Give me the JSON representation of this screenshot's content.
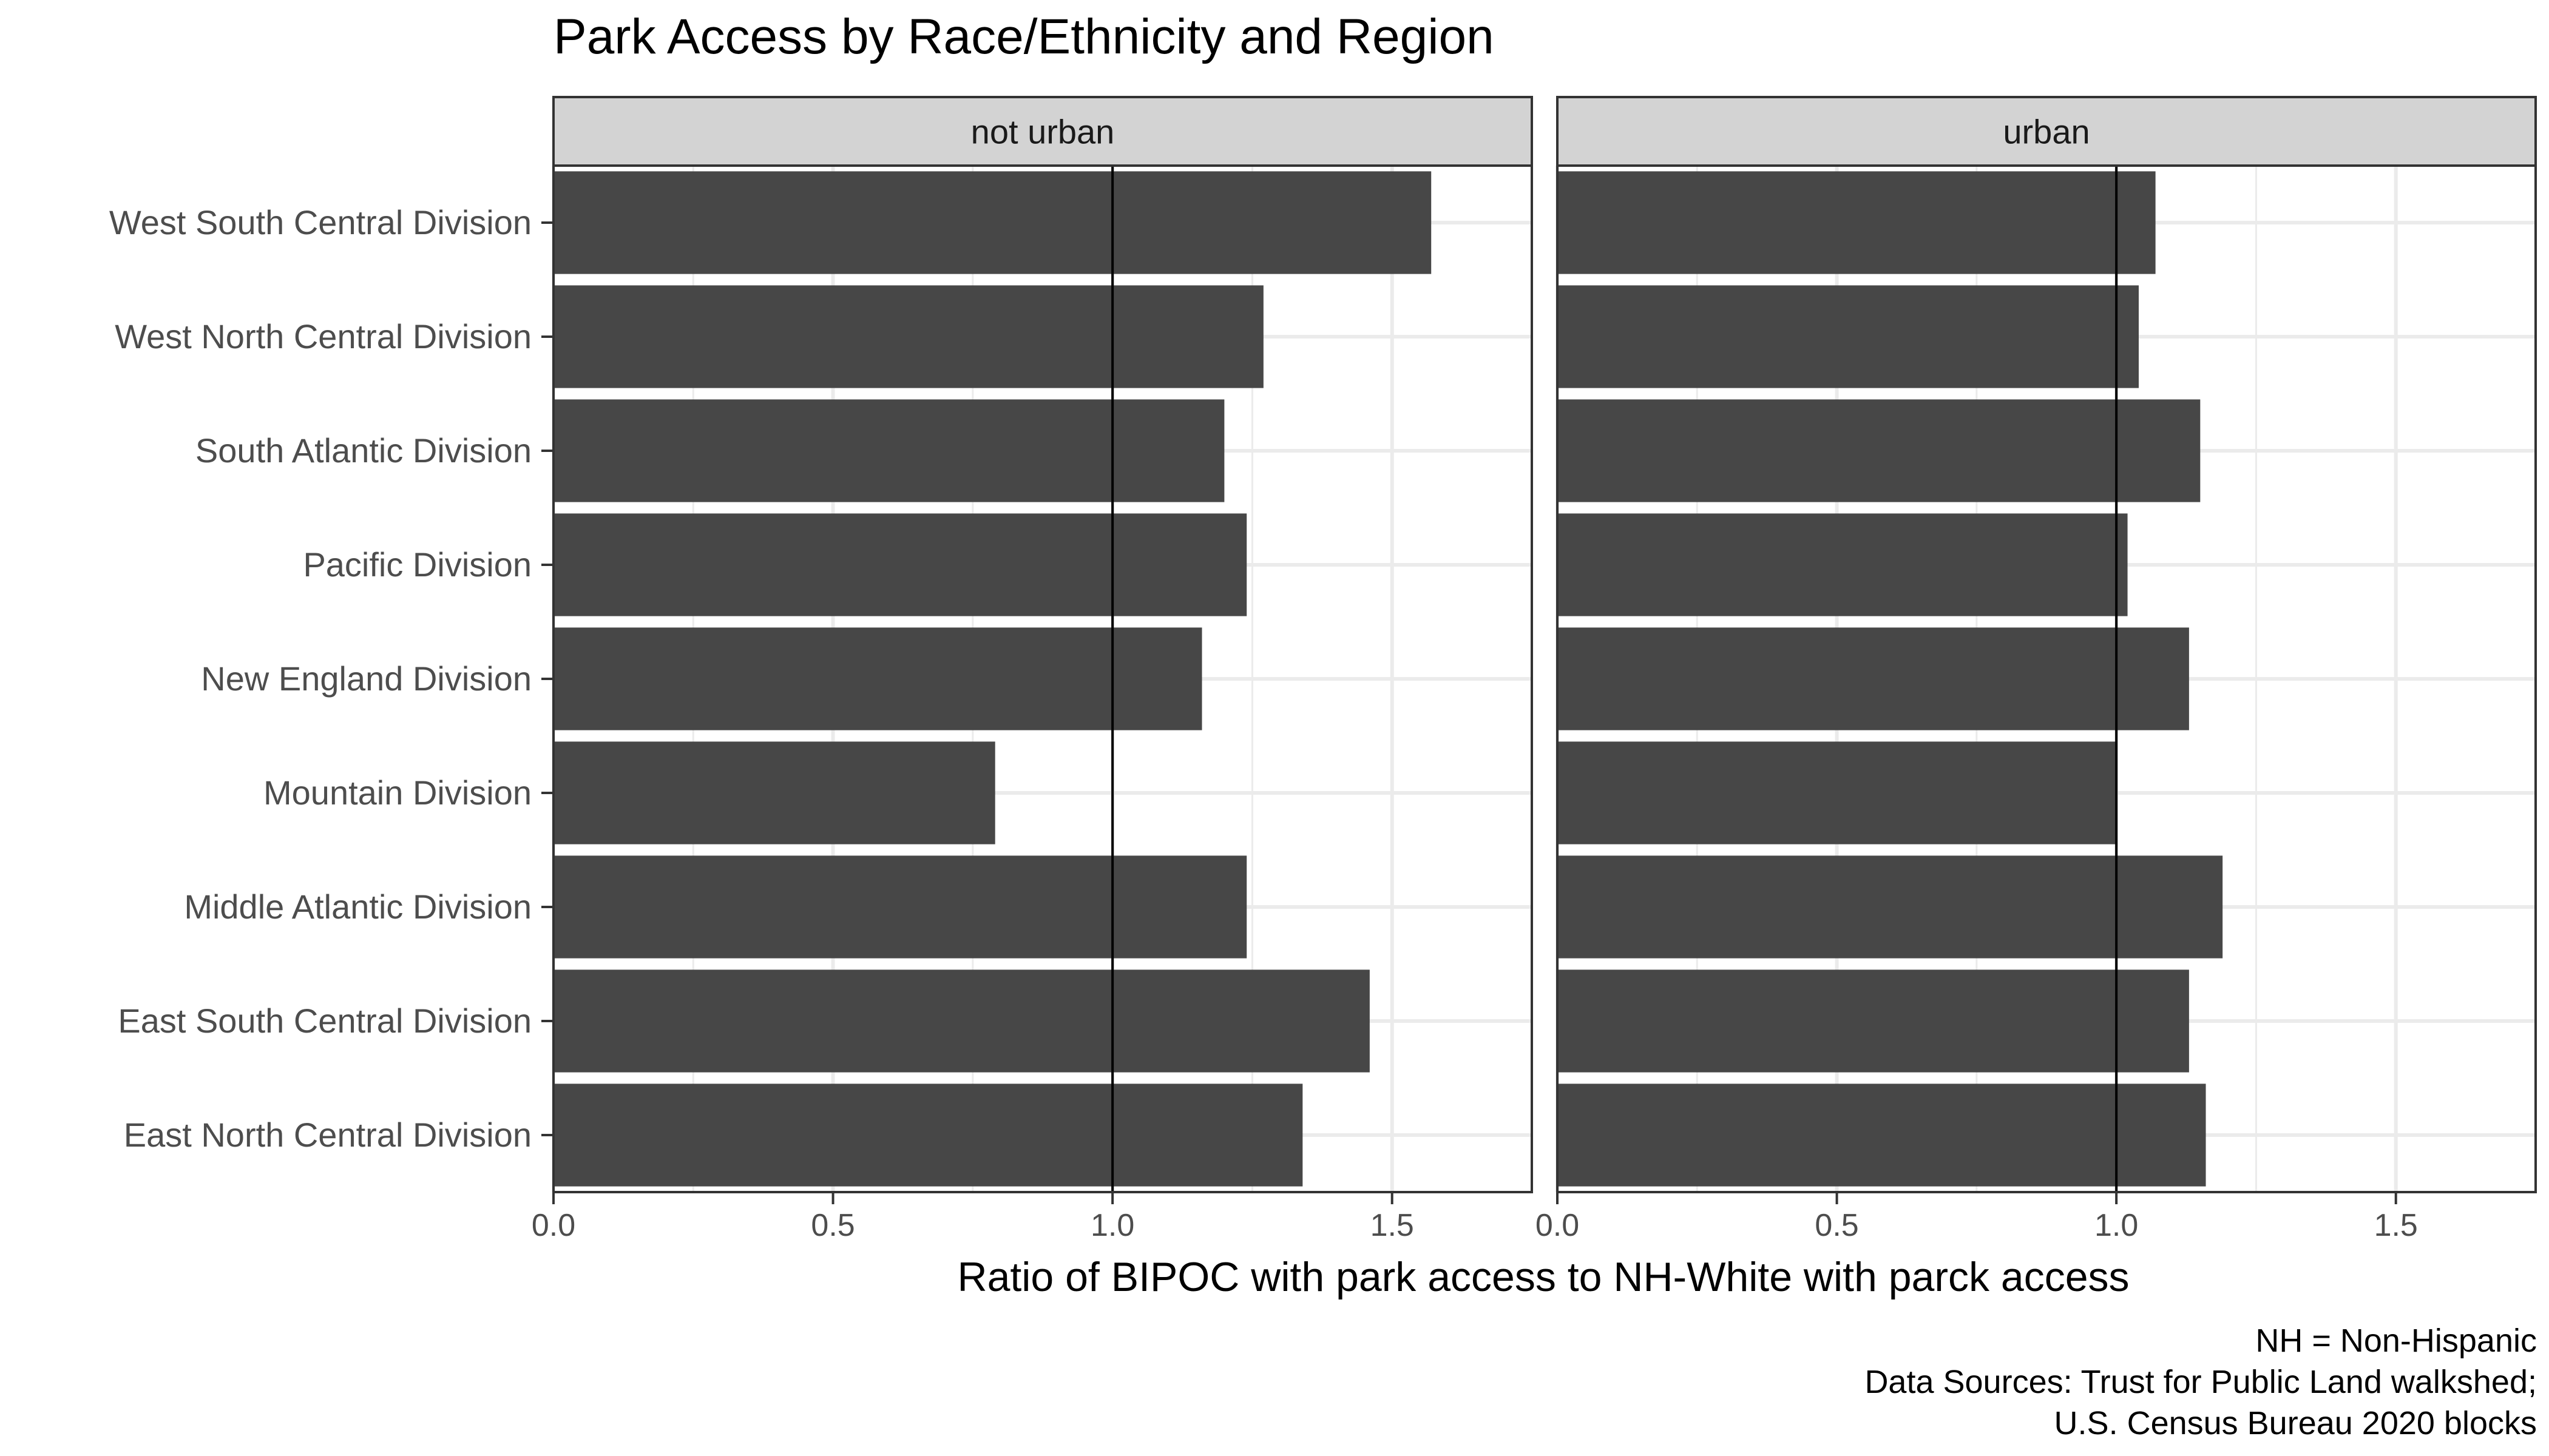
{
  "chart_data": {
    "type": "bar",
    "orientation": "horizontal",
    "title": "Park Access by Race/Ethnicity and Region",
    "xlabel": "Ratio of BIPOC with park access to NH-White with parck access",
    "ylabel": "",
    "xlim": [
      0,
      1.75
    ],
    "x_ticks": [
      "0.0",
      "0.5",
      "1.0",
      "1.5"
    ],
    "reference_line": 1.0,
    "grid": true,
    "bar_color": "#474747",
    "strip_color": "#d3d3d3",
    "categories": [
      "West South Central Division",
      "West North Central Division",
      "South Atlantic Division",
      "Pacific Division",
      "New England Division",
      "Mountain Division",
      "Middle Atlantic Division",
      "East South Central Division",
      "East North Central Division"
    ],
    "facets": [
      {
        "label": "not urban",
        "values": [
          1.57,
          1.27,
          1.2,
          1.24,
          1.16,
          0.79,
          1.24,
          1.46,
          1.34
        ]
      },
      {
        "label": "urban",
        "values": [
          1.07,
          1.04,
          1.15,
          1.02,
          1.13,
          1.0,
          1.19,
          1.13,
          1.16
        ]
      }
    ],
    "caption": [
      "NH = Non-Hispanic",
      "Data Sources: Trust for Public Land walkshed;",
      "U.S. Census Bureau 2020 blocks"
    ]
  }
}
